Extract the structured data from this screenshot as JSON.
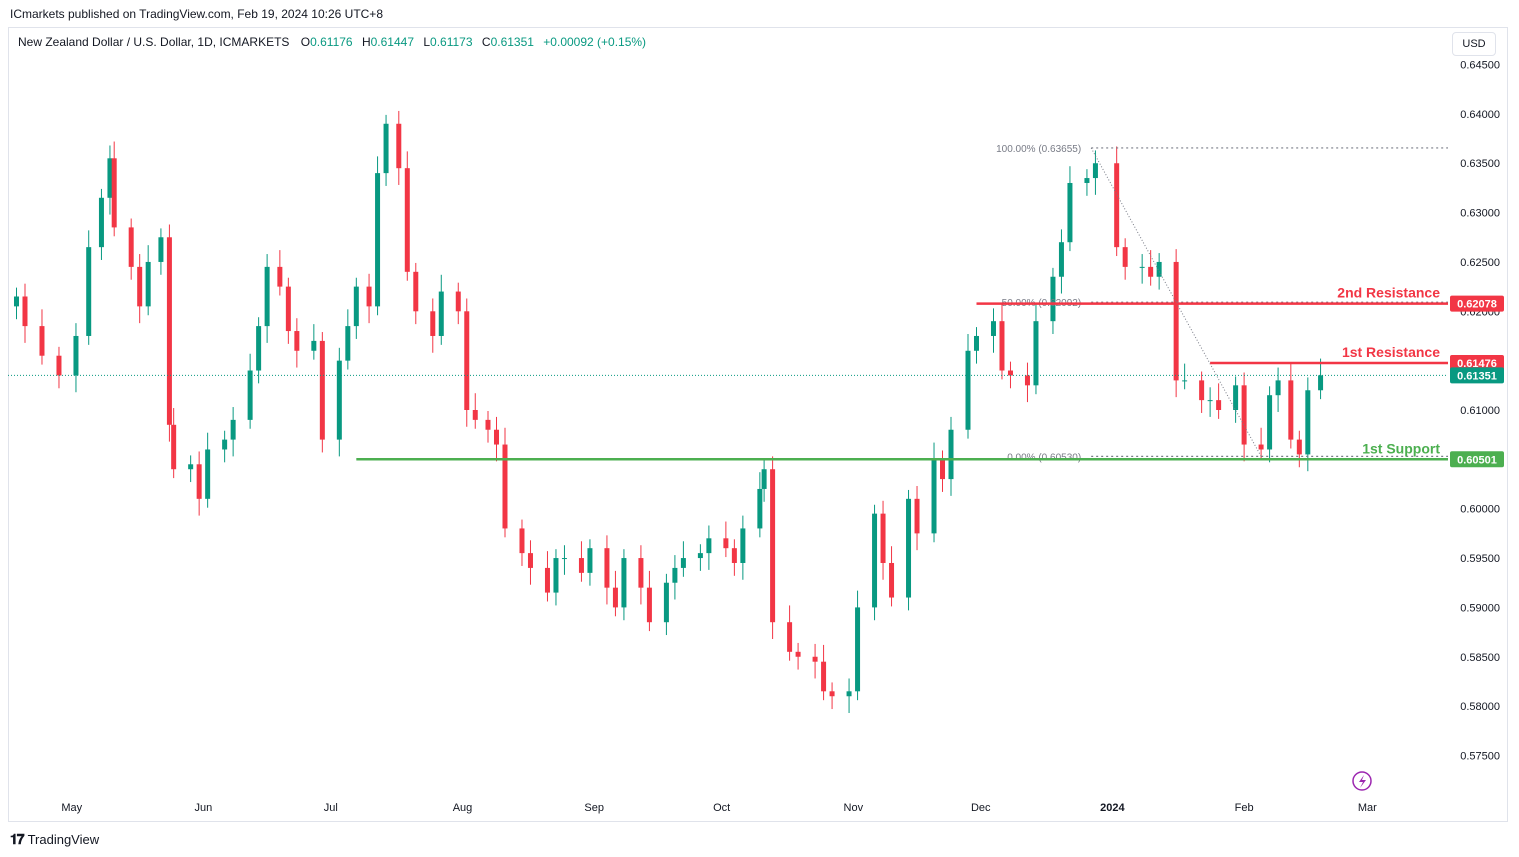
{
  "publisher_line": "ICmarkets published on TradingView.com, Feb 19, 2024 10:26 UTC+8",
  "legend": {
    "symbol": "New Zealand Dollar / U.S. Dollar, 1D, ICMARKETS",
    "open_label": "O",
    "open": "0.61176",
    "high_label": "H",
    "high": "0.61447",
    "low_label": "L",
    "low": "0.61173",
    "close_label": "C",
    "close": "0.61351",
    "change": "+0.00092 (+0.15%)"
  },
  "currency_button": "USD",
  "footer_brand": "TradingView",
  "colors": {
    "up": "#089981",
    "down": "#f23645",
    "support": "#4caf50",
    "resistance": "#f23645",
    "last_price": "#089981",
    "grid_text": "#131722"
  },
  "chart_data": {
    "type": "candlestick",
    "title": "New Zealand Dollar / U.S. Dollar, 1D, ICMARKETS",
    "x_ticks": [
      "May",
      "Jun",
      "Jul",
      "Aug",
      "Sep",
      "Oct",
      "Nov",
      "Dec",
      "2024",
      "Feb",
      "Mar"
    ],
    "y_ticks": [
      "0.64500",
      "0.64000",
      "0.63500",
      "0.63000",
      "0.62500",
      "0.62000",
      "0.61500",
      "0.61000",
      "0.60500",
      "0.60000",
      "0.59500",
      "0.59000",
      "0.58500",
      "0.58000",
      "0.57500"
    ],
    "ylim": [
      0.5715,
      0.6485
    ],
    "last_price": "0.61351",
    "levels": [
      {
        "name": "2nd Resistance",
        "value": "0.62078",
        "kind": "resistance",
        "start_date": "2023-11-30"
      },
      {
        "name": "1st Resistance",
        "value": "0.61476",
        "kind": "resistance",
        "start_date": "2024-01-24"
      },
      {
        "name": "1st Support",
        "value": "0.60501",
        "kind": "support",
        "start_date": "2023-07-07"
      }
    ],
    "fibonacci": [
      {
        "label": "100.00% (0.63655)",
        "value": 0.63655
      },
      {
        "label": "50.00% (0.62092)",
        "value": 0.62092
      },
      {
        "label": "0.00% (0.60530)",
        "value": 0.6053
      }
    ],
    "fib_anchor_dates": [
      "2023-12-27",
      "2024-02-05"
    ],
    "closes": [
      [
        "2023-04-18",
        0.6215
      ],
      [
        "2023-04-20",
        0.6185
      ],
      [
        "2023-04-24",
        0.6155
      ],
      [
        "2023-04-28",
        0.6135
      ],
      [
        "2023-05-02",
        0.6175
      ],
      [
        "2023-05-05",
        0.6265
      ],
      [
        "2023-05-08",
        0.6315
      ],
      [
        "2023-05-10",
        0.6355
      ],
      [
        "2023-05-11",
        0.6285
      ],
      [
        "2023-05-15",
        0.6245
      ],
      [
        "2023-05-17",
        0.6205
      ],
      [
        "2023-05-19",
        0.625
      ],
      [
        "2023-05-22",
        0.6275
      ],
      [
        "2023-05-24",
        0.6085
      ],
      [
        "2023-05-25",
        0.604
      ],
      [
        "2023-05-29",
        0.6045
      ],
      [
        "2023-05-31",
        0.601
      ],
      [
        "2023-06-02",
        0.606
      ],
      [
        "2023-06-06",
        0.607
      ],
      [
        "2023-06-08",
        0.609
      ],
      [
        "2023-06-12",
        0.614
      ],
      [
        "2023-06-14",
        0.6185
      ],
      [
        "2023-06-16",
        0.6245
      ],
      [
        "2023-06-19",
        0.6225
      ],
      [
        "2023-06-21",
        0.618
      ],
      [
        "2023-06-23",
        0.616
      ],
      [
        "2023-06-27",
        0.617
      ],
      [
        "2023-06-29",
        0.607
      ],
      [
        "2023-07-03",
        0.615
      ],
      [
        "2023-07-05",
        0.6185
      ],
      [
        "2023-07-07",
        0.6225
      ],
      [
        "2023-07-10",
        0.6205
      ],
      [
        "2023-07-12",
        0.634
      ],
      [
        "2023-07-14",
        0.639
      ],
      [
        "2023-07-17",
        0.6345
      ],
      [
        "2023-07-19",
        0.624
      ],
      [
        "2023-07-21",
        0.62
      ],
      [
        "2023-07-25",
        0.6175
      ],
      [
        "2023-07-27",
        0.622
      ],
      [
        "2023-07-31",
        0.62
      ],
      [
        "2023-08-02",
        0.61
      ],
      [
        "2023-08-04",
        0.609
      ],
      [
        "2023-08-07",
        0.608
      ],
      [
        "2023-08-09",
        0.6065
      ],
      [
        "2023-08-11",
        0.598
      ],
      [
        "2023-08-15",
        0.5955
      ],
      [
        "2023-08-17",
        0.594
      ],
      [
        "2023-08-21",
        0.5915
      ],
      [
        "2023-08-23",
        0.595
      ],
      [
        "2023-08-25",
        0.595
      ],
      [
        "2023-08-29",
        0.5935
      ],
      [
        "2023-08-31",
        0.596
      ],
      [
        "2023-09-04",
        0.592
      ],
      [
        "2023-09-06",
        0.59
      ],
      [
        "2023-09-08",
        0.595
      ],
      [
        "2023-09-12",
        0.592
      ],
      [
        "2023-09-14",
        0.5885
      ],
      [
        "2023-09-18",
        0.5925
      ],
      [
        "2023-09-20",
        0.594
      ],
      [
        "2023-09-22",
        0.595
      ],
      [
        "2023-09-26",
        0.5955
      ],
      [
        "2023-09-28",
        0.597
      ],
      [
        "2023-10-02",
        0.596
      ],
      [
        "2023-10-04",
        0.5945
      ],
      [
        "2023-10-06",
        0.598
      ],
      [
        "2023-10-10",
        0.602
      ],
      [
        "2023-10-11",
        0.604
      ],
      [
        "2023-10-13",
        0.5885
      ],
      [
        "2023-10-17",
        0.5855
      ],
      [
        "2023-10-19",
        0.585
      ],
      [
        "2023-10-23",
        0.5845
      ],
      [
        "2023-10-25",
        0.5815
      ],
      [
        "2023-10-27",
        0.581
      ],
      [
        "2023-10-31",
        0.5815
      ],
      [
        "2023-11-02",
        0.59
      ],
      [
        "2023-11-06",
        0.5995
      ],
      [
        "2023-11-08",
        0.5945
      ],
      [
        "2023-11-10",
        0.591
      ],
      [
        "2023-11-14",
        0.601
      ],
      [
        "2023-11-16",
        0.5975
      ],
      [
        "2023-11-20",
        0.605
      ],
      [
        "2023-11-22",
        0.603
      ],
      [
        "2023-11-24",
        0.608
      ],
      [
        "2023-11-28",
        0.616
      ],
      [
        "2023-11-30",
        0.6175
      ],
      [
        "2023-12-04",
        0.619
      ],
      [
        "2023-12-06",
        0.614
      ],
      [
        "2023-12-08",
        0.6135
      ],
      [
        "2023-12-12",
        0.6125
      ],
      [
        "2023-12-14",
        0.619
      ],
      [
        "2023-12-18",
        0.6235
      ],
      [
        "2023-12-20",
        0.627
      ],
      [
        "2023-12-22",
        0.633
      ],
      [
        "2023-12-26",
        0.6335
      ],
      [
        "2023-12-28",
        0.635
      ],
      [
        "2024-01-02",
        0.6265
      ],
      [
        "2024-01-04",
        0.6245
      ],
      [
        "2024-01-08",
        0.6245
      ],
      [
        "2024-01-10",
        0.6235
      ],
      [
        "2024-01-12",
        0.625
      ],
      [
        "2024-01-16",
        0.613
      ],
      [
        "2024-01-18",
        0.613
      ],
      [
        "2024-01-22",
        0.611
      ],
      [
        "2024-01-24",
        0.611
      ],
      [
        "2024-01-26",
        0.61
      ],
      [
        "2024-01-30",
        0.6125
      ],
      [
        "2024-02-01",
        0.6065
      ],
      [
        "2024-02-05",
        0.606
      ],
      [
        "2024-02-07",
        0.6115
      ],
      [
        "2024-02-09",
        0.613
      ],
      [
        "2024-02-12",
        0.607
      ],
      [
        "2024-02-14",
        0.6055
      ],
      [
        "2024-02-16",
        0.612
      ],
      [
        "2024-02-19",
        0.61351
      ]
    ]
  }
}
